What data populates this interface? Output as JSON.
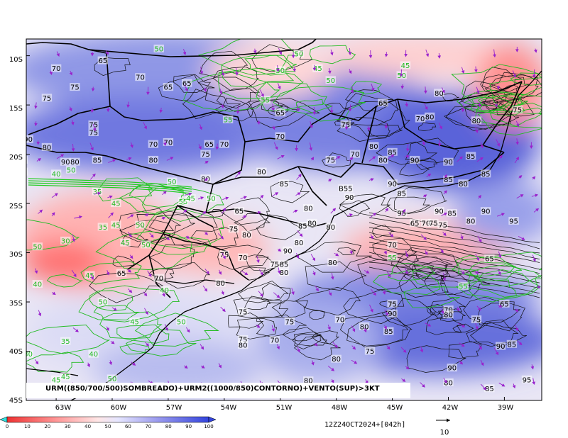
{
  "map": {
    "caption": "URM((850/700/500)SOMBREADO)+URM2((1000/850)CONTORNO)+VENTO(SUP)>3KT",
    "timestamp": "12Z24OCT2024+[042h]",
    "vector_ref_label": "10",
    "lat_labels": [
      "10S",
      "15S",
      "20S",
      "25S",
      "30S",
      "35S",
      "40S",
      "45S"
    ],
    "lon_labels": [
      "63W",
      "60W",
      "57W",
      "54W",
      "51W",
      "48W",
      "45W",
      "42W",
      "39W"
    ],
    "colorbar_ticks": [
      "0",
      "10",
      "20",
      "30",
      "40",
      "50",
      "60",
      "70",
      "80",
      "90",
      "100"
    ],
    "colors": {
      "dry": "#ee3333",
      "mid": "#ffdddd",
      "wet": "#3344dd",
      "green_contour": "#22bb22",
      "vector": "#9922cc"
    }
  },
  "black_labels": [
    {
      "t": "70",
      "lon": -63.0,
      "lat": -11.3
    },
    {
      "t": "65",
      "lon": -60.5,
      "lat": -10.5
    },
    {
      "t": "70",
      "lon": -58.5,
      "lat": -12.2
    },
    {
      "t": "75",
      "lon": -62.0,
      "lat": -13.2
    },
    {
      "t": "65",
      "lon": -57.0,
      "lat": -13.2
    },
    {
      "t": "65",
      "lon": -56.0,
      "lat": -12.8
    },
    {
      "t": "75",
      "lon": -63.5,
      "lat": -14.3
    },
    {
      "t": "65",
      "lon": -51.0,
      "lat": -15.8
    },
    {
      "t": "75",
      "lon": -61.0,
      "lat": -17.0
    },
    {
      "t": "75",
      "lon": -61.0,
      "lat": -17.8
    },
    {
      "t": "90",
      "lon": -64.5,
      "lat": -18.5
    },
    {
      "t": "80",
      "lon": -63.5,
      "lat": -19.3
    },
    {
      "t": "70",
      "lon": -57.8,
      "lat": -19.0
    },
    {
      "t": "70",
      "lon": -57.0,
      "lat": -18.8
    },
    {
      "t": "65",
      "lon": -54.8,
      "lat": -19.0
    },
    {
      "t": "70",
      "lon": -54.0,
      "lat": -19.0
    },
    {
      "t": "70",
      "lon": -51.0,
      "lat": -18.2
    },
    {
      "t": "75",
      "lon": -47.5,
      "lat": -17.0
    },
    {
      "t": "75",
      "lon": -64.8,
      "lat": -20.6
    },
    {
      "t": "90",
      "lon": -62.5,
      "lat": -20.8
    },
    {
      "t": "80",
      "lon": -62.0,
      "lat": -20.8
    },
    {
      "t": "85",
      "lon": -60.8,
      "lat": -20.6
    },
    {
      "t": "80",
      "lon": -57.8,
      "lat": -20.6
    },
    {
      "t": "75",
      "lon": -55.0,
      "lat": -20.0
    },
    {
      "t": "80",
      "lon": -46.0,
      "lat": -19.2
    },
    {
      "t": "70",
      "lon": -47.0,
      "lat": -20.0
    },
    {
      "t": "75",
      "lon": -48.3,
      "lat": -20.6
    },
    {
      "t": "80",
      "lon": -45.5,
      "lat": -20.6
    },
    {
      "t": "85",
      "lon": -45.0,
      "lat": -19.8
    },
    {
      "t": "85",
      "lon": -64.8,
      "lat": -21.8
    },
    {
      "t": "80",
      "lon": -52.0,
      "lat": -21.8
    },
    {
      "t": "80",
      "lon": -55.0,
      "lat": -22.5
    },
    {
      "t": "85",
      "lon": -50.8,
      "lat": -23.0
    },
    {
      "t": "90",
      "lon": -45.0,
      "lat": -23.0
    },
    {
      "t": "85",
      "lon": -42.0,
      "lat": -22.6
    },
    {
      "t": "90",
      "lon": -43.8,
      "lat": -20.6
    },
    {
      "t": "85",
      "lon": -44.5,
      "lat": -24.0
    },
    {
      "t": "85",
      "lon": -40.0,
      "lat": -22.0
    },
    {
      "t": "80",
      "lon": -41.2,
      "lat": -23.0
    },
    {
      "t": "B55",
      "lon": -47.5,
      "lat": -23.5
    },
    {
      "t": "90",
      "lon": -47.3,
      "lat": -24.4
    },
    {
      "t": "65",
      "lon": -53.2,
      "lat": -25.8
    },
    {
      "t": "80",
      "lon": -49.5,
      "lat": -25.5
    },
    {
      "t": "80",
      "lon": -49.3,
      "lat": -27.0
    },
    {
      "t": "95",
      "lon": -44.5,
      "lat": -26.0
    },
    {
      "t": "90",
      "lon": -42.5,
      "lat": -25.8
    },
    {
      "t": "85",
      "lon": -41.8,
      "lat": -26.0
    },
    {
      "t": "90",
      "lon": -40.0,
      "lat": -25.8
    },
    {
      "t": "80",
      "lon": -40.8,
      "lat": -26.8
    },
    {
      "t": "95",
      "lon": -38.5,
      "lat": -26.8
    },
    {
      "t": "65",
      "lon": -43.8,
      "lat": -27.0
    },
    {
      "t": "70",
      "lon": -43.2,
      "lat": -27.0
    },
    {
      "t": "75",
      "lon": -42.8,
      "lat": -27.0
    },
    {
      "t": "75",
      "lon": -53.5,
      "lat": -27.6
    },
    {
      "t": "85",
      "lon": -49.8,
      "lat": -27.3
    },
    {
      "t": "80",
      "lon": -52.8,
      "lat": -28.2
    },
    {
      "t": "80",
      "lon": -48.3,
      "lat": -27.4
    },
    {
      "t": "80",
      "lon": -50.0,
      "lat": -29.0
    },
    {
      "t": "90",
      "lon": -50.6,
      "lat": -29.8
    },
    {
      "t": "75",
      "lon": -54.0,
      "lat": -30.2
    },
    {
      "t": "70",
      "lon": -53.0,
      "lat": -30.5
    },
    {
      "t": "70",
      "lon": -45.0,
      "lat": -29.2
    },
    {
      "t": "75",
      "lon": -51.3,
      "lat": -31.2
    },
    {
      "t": "85",
      "lon": -50.8,
      "lat": -31.2
    },
    {
      "t": "80",
      "lon": -50.8,
      "lat": -32.0
    },
    {
      "t": "80",
      "lon": -48.2,
      "lat": -31.0
    },
    {
      "t": "65",
      "lon": -39.8,
      "lat": -30.6
    },
    {
      "t": "65",
      "lon": -59.5,
      "lat": -32.1
    },
    {
      "t": "70",
      "lon": -57.5,
      "lat": -32.6
    },
    {
      "t": "80",
      "lon": -54.2,
      "lat": -33.1
    },
    {
      "t": "75",
      "lon": -45.0,
      "lat": -35.2
    },
    {
      "t": "75",
      "lon": -53.0,
      "lat": -36.0
    },
    {
      "t": "65",
      "lon": -39.0,
      "lat": -35.2
    },
    {
      "t": "70",
      "lon": -42.0,
      "lat": -35.8
    },
    {
      "t": "90",
      "lon": -45.0,
      "lat": -36.2
    },
    {
      "t": "80",
      "lon": -42.0,
      "lat": -36.3
    },
    {
      "t": "75",
      "lon": -40.5,
      "lat": -36.8
    },
    {
      "t": "70",
      "lon": -47.8,
      "lat": -36.8
    },
    {
      "t": "75",
      "lon": -50.5,
      "lat": -37.0
    },
    {
      "t": "80",
      "lon": -46.5,
      "lat": -37.5
    },
    {
      "t": "85",
      "lon": -45.2,
      "lat": -38.0
    },
    {
      "t": "75",
      "lon": -53.0,
      "lat": -38.8
    },
    {
      "t": "80",
      "lon": -53.0,
      "lat": -39.4
    },
    {
      "t": "70",
      "lon": -51.3,
      "lat": -38.9
    },
    {
      "t": "75",
      "lon": -46.2,
      "lat": -40.0
    },
    {
      "t": "90",
      "lon": -39.2,
      "lat": -39.5
    },
    {
      "t": "85",
      "lon": -38.6,
      "lat": -39.3
    },
    {
      "t": "80",
      "lon": -48.0,
      "lat": -40.8
    },
    {
      "t": "90",
      "lon": -41.8,
      "lat": -41.7
    },
    {
      "t": "80",
      "lon": -49.5,
      "lat": -43.0
    },
    {
      "t": "80",
      "lon": -42.0,
      "lat": -43.2
    },
    {
      "t": "85",
      "lon": -39.8,
      "lat": -43.8
    },
    {
      "t": "95",
      "lon": -37.8,
      "lat": -42.9
    },
    {
      "t": "65",
      "lon": -45.5,
      "lat": -14.8
    },
    {
      "t": "70",
      "lon": -43.5,
      "lat": -16.4
    },
    {
      "t": "80",
      "lon": -43.0,
      "lat": -16.2
    },
    {
      "t": "80",
      "lon": -42.5,
      "lat": -13.8
    },
    {
      "t": "80",
      "lon": -40.5,
      "lat": -16.6
    },
    {
      "t": "75",
      "lon": -38.3,
      "lat": -15.5
    },
    {
      "t": "90",
      "lon": -42.0,
      "lat": -20.8
    },
    {
      "t": "85",
      "lon": -40.8,
      "lat": -20.2
    },
    {
      "t": "75",
      "lon": -42.3,
      "lat": -27.2
    }
  ],
  "green_labels": [
    {
      "t": "50",
      "lon": -57.5,
      "lat": -9.3
    },
    {
      "t": "50",
      "lon": -50.0,
      "lat": -9.8
    },
    {
      "t": "45",
      "lon": -49.0,
      "lat": -11.3
    },
    {
      "t": "50",
      "lon": -51.0,
      "lat": -11.5
    },
    {
      "t": "50",
      "lon": -48.3,
      "lat": -12.5
    },
    {
      "t": "50",
      "lon": -44.5,
      "lat": -12.0
    },
    {
      "t": "45",
      "lon": -44.3,
      "lat": -11.0
    },
    {
      "t": "55",
      "lon": -51.8,
      "lat": -14.5
    },
    {
      "t": "55",
      "lon": -53.8,
      "lat": -16.5
    },
    {
      "t": "40",
      "lon": -63.0,
      "lat": -22.0
    },
    {
      "t": "50",
      "lon": -62.2,
      "lat": -21.6
    },
    {
      "t": "35",
      "lon": -60.8,
      "lat": -23.8
    },
    {
      "t": "50",
      "lon": -56.8,
      "lat": -22.8
    },
    {
      "t": "55",
      "lon": -56.2,
      "lat": -24.8
    },
    {
      "t": "45",
      "lon": -55.8,
      "lat": -24.5
    },
    {
      "t": "50",
      "lon": -54.7,
      "lat": -24.5
    },
    {
      "t": "45",
      "lon": -59.8,
      "lat": -25.0
    },
    {
      "t": "35",
      "lon": -60.5,
      "lat": -27.4
    },
    {
      "t": "45",
      "lon": -59.8,
      "lat": -27.2
    },
    {
      "t": "50",
      "lon": -58.5,
      "lat": -27.2
    },
    {
      "t": "30",
      "lon": -62.5,
      "lat": -28.8
    },
    {
      "t": "50",
      "lon": -64.0,
      "lat": -29.4
    },
    {
      "t": "45",
      "lon": -59.3,
      "lat": -29.0
    },
    {
      "t": "50",
      "lon": -58.2,
      "lat": -29.2
    },
    {
      "t": "55",
      "lon": -45.0,
      "lat": -30.5
    },
    {
      "t": "45",
      "lon": -61.2,
      "lat": -32.3
    },
    {
      "t": "40",
      "lon": -64.0,
      "lat": -33.2
    },
    {
      "t": "40",
      "lon": -57.2,
      "lat": -33.8
    },
    {
      "t": "50",
      "lon": -60.5,
      "lat": -35.0
    },
    {
      "t": "45",
      "lon": -58.8,
      "lat": -37.0
    },
    {
      "t": "50",
      "lon": -56.3,
      "lat": -37.0
    },
    {
      "t": "55",
      "lon": -41.2,
      "lat": -33.4
    },
    {
      "t": "35",
      "lon": -62.5,
      "lat": -39.0
    },
    {
      "t": "30",
      "lon": -64.5,
      "lat": -40.3
    },
    {
      "t": "40",
      "lon": -61.0,
      "lat": -40.3
    },
    {
      "t": "45",
      "lon": -62.5,
      "lat": -42.6
    },
    {
      "t": "45",
      "lon": -63.0,
      "lat": -42.9
    },
    {
      "t": "50",
      "lon": -60.0,
      "lat": -42.8
    },
    {
      "t": "55",
      "lon": -57.5,
      "lat": -43.6
    }
  ]
}
